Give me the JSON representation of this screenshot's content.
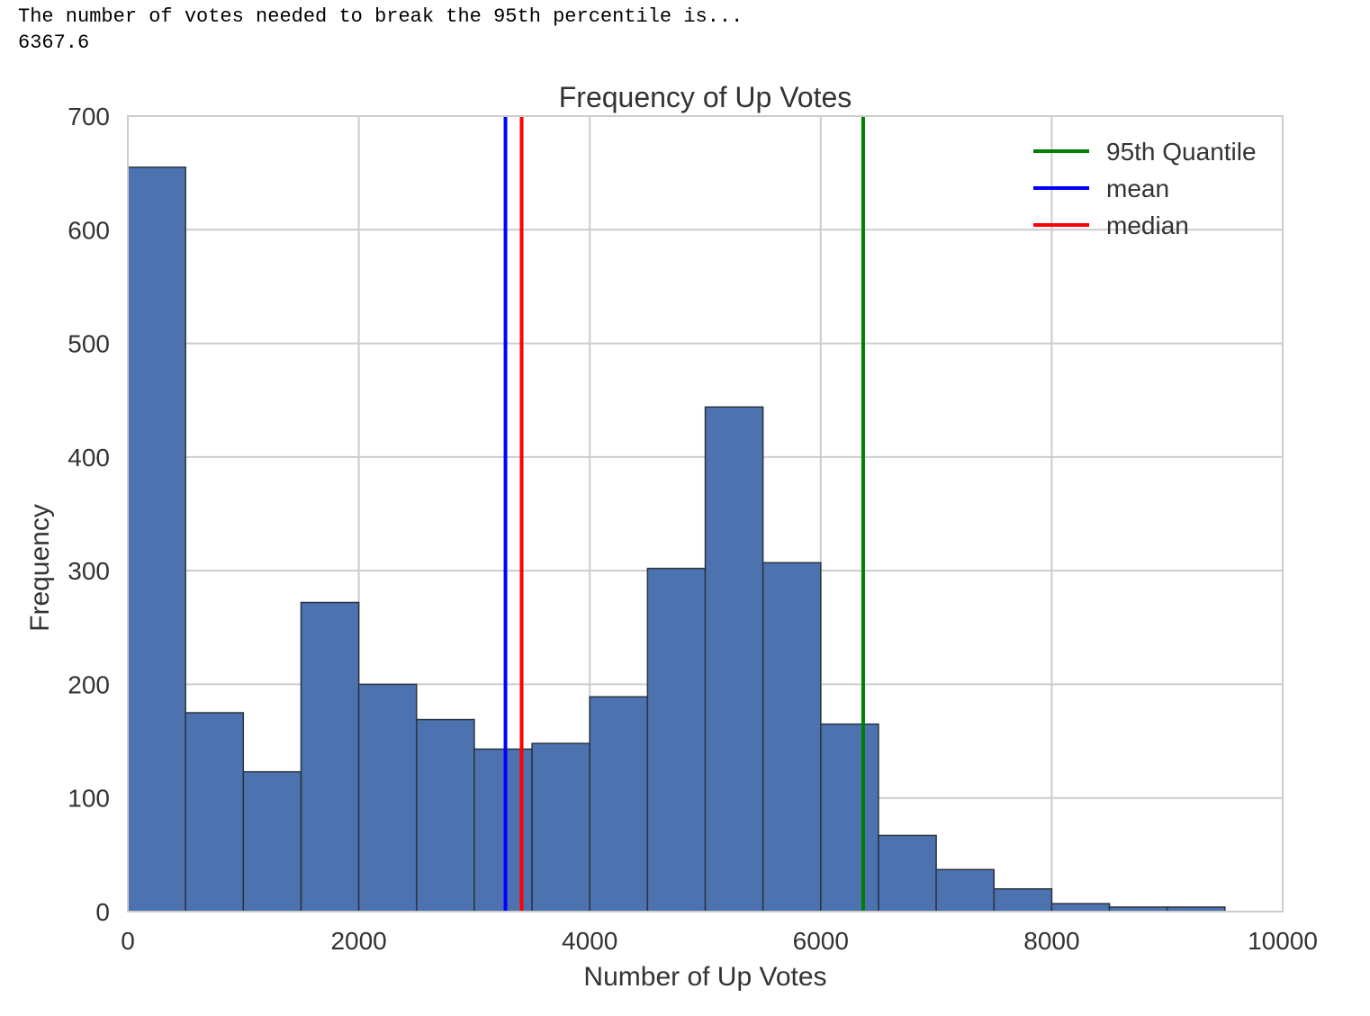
{
  "console": {
    "line1": "The number of votes needed to break the 95th percentile is...",
    "line2": "6367.6"
  },
  "chart_data": {
    "type": "bar",
    "title": "Frequency of Up Votes",
    "xlabel": "Number of Up Votes",
    "ylabel": "Frequency",
    "xlim": [
      0,
      10000
    ],
    "ylim": [
      0,
      700
    ],
    "xticks": [
      "0",
      "2000",
      "4000",
      "6000",
      "8000",
      "10000"
    ],
    "yticks": [
      "0",
      "100",
      "200",
      "300",
      "400",
      "500",
      "600",
      "700"
    ],
    "grid": true,
    "bar_color": "#4c72b0",
    "bin_width": 500,
    "bins": [
      {
        "x": 0,
        "value": 655
      },
      {
        "x": 500,
        "value": 175
      },
      {
        "x": 1000,
        "value": 123
      },
      {
        "x": 1500,
        "value": 272
      },
      {
        "x": 2000,
        "value": 200
      },
      {
        "x": 2500,
        "value": 169
      },
      {
        "x": 3000,
        "value": 143
      },
      {
        "x": 3500,
        "value": 148
      },
      {
        "x": 4000,
        "value": 189
      },
      {
        "x": 4500,
        "value": 302
      },
      {
        "x": 5000,
        "value": 444
      },
      {
        "x": 5500,
        "value": 307
      },
      {
        "x": 6000,
        "value": 165
      },
      {
        "x": 6500,
        "value": 67
      },
      {
        "x": 7000,
        "value": 37
      },
      {
        "x": 7500,
        "value": 20
      },
      {
        "x": 8000,
        "value": 7
      },
      {
        "x": 8500,
        "value": 4
      },
      {
        "x": 9000,
        "value": 4
      }
    ],
    "vlines": [
      {
        "name": "95th Quantile",
        "x": 6367.6,
        "color": "#008000"
      },
      {
        "name": "mean",
        "x": 3270,
        "color": "#0000ff"
      },
      {
        "name": "median",
        "x": 3410,
        "color": "#ff0000"
      }
    ],
    "legend": {
      "position": "top-right",
      "entries": [
        {
          "label": "95th Quantile",
          "color": "#008000"
        },
        {
          "label": "mean",
          "color": "#0000ff"
        },
        {
          "label": "median",
          "color": "#ff0000"
        }
      ]
    }
  }
}
